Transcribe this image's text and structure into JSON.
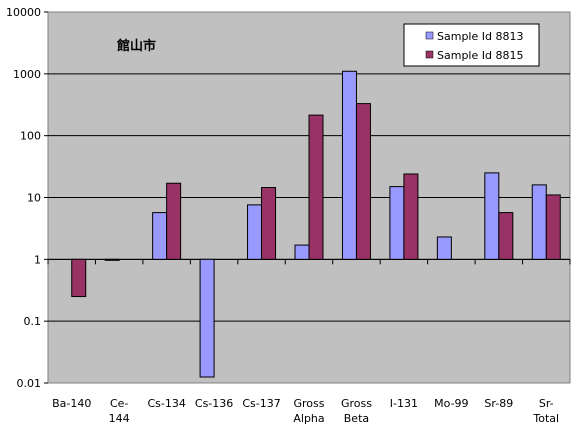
{
  "chart_data": {
    "type": "bar",
    "title": "館山市",
    "xlabel": "",
    "ylabel": "",
    "yscale": "log",
    "ylim": [
      0.01,
      10000
    ],
    "y_ticks": [
      "0.01",
      "0.1",
      "1",
      "10",
      "100",
      "1000",
      "10000"
    ],
    "categories": [
      "Ba-140",
      "Ce-144",
      "Cs-134",
      "Cs-136",
      "Cs-137",
      "Gross Alpha",
      "Gross Beta",
      "I-131",
      "Mo-99",
      "Sr-89",
      "Sr-Total"
    ],
    "category_lines": [
      [
        "Ba-140"
      ],
      [
        "Ce-",
        "144"
      ],
      [
        "Cs-134"
      ],
      [
        "Cs-136"
      ],
      [
        "Cs-137"
      ],
      [
        "Gross",
        "Alpha"
      ],
      [
        "Gross",
        "Beta"
      ],
      [
        "I-131"
      ],
      [
        "Mo-99"
      ],
      [
        "Sr-89"
      ],
      [
        "Sr-",
        "Total"
      ]
    ],
    "series": [
      {
        "name": "Sample Id 8813",
        "color": "#9999ff",
        "values": [
          null,
          0.97,
          5.7,
          0.0125,
          7.6,
          1.7,
          1100,
          15,
          2.3,
          25,
          16
        ]
      },
      {
        "name": "Sample Id 8815",
        "color": "#993366",
        "values": [
          0.25,
          null,
          17,
          null,
          14.5,
          215,
          330,
          24,
          null,
          5.7,
          11
        ]
      }
    ],
    "legend_position": "top-right",
    "grid": true,
    "plot_background": "#c0c0c0"
  }
}
